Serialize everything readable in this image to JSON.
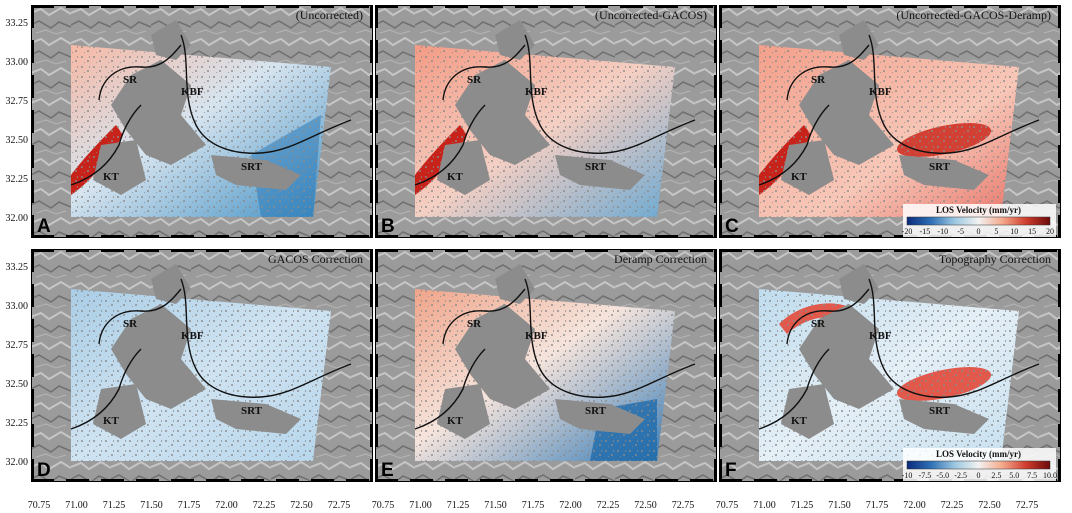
{
  "panels": [
    {
      "letter": "A",
      "title": "(Uncorrected)",
      "kind": "uncorr"
    },
    {
      "letter": "B",
      "title": "(Uncorrected-GACOS)",
      "kind": "gacos_sub"
    },
    {
      "letter": "C",
      "title": "(Uncorrected-GACOS-Deramp)",
      "kind": "final"
    },
    {
      "letter": "D",
      "title": "GACOS Correction",
      "kind": "gacos"
    },
    {
      "letter": "E",
      "title": "Deramp Correction",
      "kind": "deramp"
    },
    {
      "letter": "F",
      "title": "Topography Correction",
      "kind": "topo"
    }
  ],
  "fault_labels": [
    "SR",
    "KBF",
    "KT",
    "SRT"
  ],
  "y_ticks": [
    "33.25",
    "33.00",
    "32.75",
    "32.50",
    "32.25",
    "32.00"
  ],
  "x_ticks": [
    "70.75",
    "71.00",
    "71.25",
    "71.50",
    "71.75",
    "72.00",
    "72.25",
    "72.50",
    "72.75"
  ],
  "colorbars": [
    {
      "title": "LOS Velocity (mm/yr)",
      "ticks": [
        "-20",
        "-15",
        "-10",
        "-5",
        "0",
        "5",
        "10",
        "15",
        "20"
      ],
      "colors": [
        "#0a2a7a",
        "#2f6fb5",
        "#9cc7e0",
        "#f2f2f2",
        "#f4a98c",
        "#cf3d2e",
        "#6b0a0a"
      ]
    },
    {
      "title": "LOS Velocity (mm/yr)",
      "ticks": [
        "-10",
        "-7.5",
        "-5.0",
        "-2.5",
        "0",
        "2.5",
        "5.0",
        "7.5",
        "10.0"
      ],
      "colors": [
        "#0a2a7a",
        "#2f6fb5",
        "#9cc7e0",
        "#f2f2f2",
        "#f4a98c",
        "#cf3d2e",
        "#6b0a0a"
      ]
    }
  ]
}
